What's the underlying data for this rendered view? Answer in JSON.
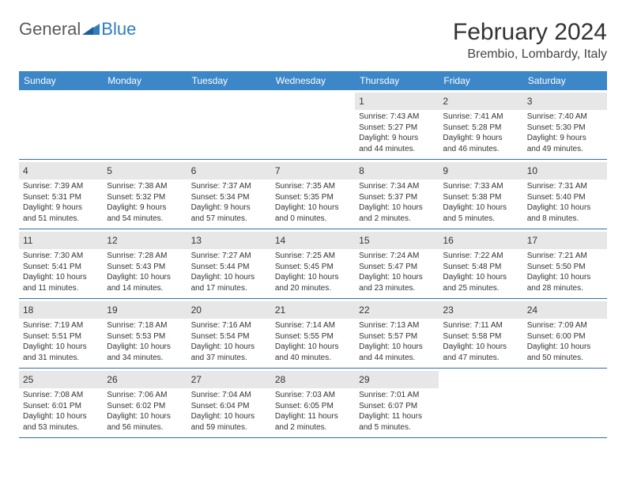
{
  "logo": {
    "main": "General",
    "sub": "Blue"
  },
  "title": "February 2024",
  "location": "Brembio, Lombardy, Italy",
  "colors": {
    "header_bg": "#3b87c8",
    "header_text": "#ffffff",
    "daynum_bg": "#e7e7e7",
    "week_border": "#2f6fa8",
    "logo_main": "#5a5a5a",
    "logo_sub": "#2d7ec0"
  },
  "day_names": [
    "Sunday",
    "Monday",
    "Tuesday",
    "Wednesday",
    "Thursday",
    "Friday",
    "Saturday"
  ],
  "weeks": [
    [
      {
        "empty": true
      },
      {
        "empty": true
      },
      {
        "empty": true
      },
      {
        "empty": true
      },
      {
        "day": "1",
        "sunrise": "Sunrise: 7:43 AM",
        "sunset": "Sunset: 5:27 PM",
        "daylight1": "Daylight: 9 hours",
        "daylight2": "and 44 minutes."
      },
      {
        "day": "2",
        "sunrise": "Sunrise: 7:41 AM",
        "sunset": "Sunset: 5:28 PM",
        "daylight1": "Daylight: 9 hours",
        "daylight2": "and 46 minutes."
      },
      {
        "day": "3",
        "sunrise": "Sunrise: 7:40 AM",
        "sunset": "Sunset: 5:30 PM",
        "daylight1": "Daylight: 9 hours",
        "daylight2": "and 49 minutes."
      }
    ],
    [
      {
        "day": "4",
        "sunrise": "Sunrise: 7:39 AM",
        "sunset": "Sunset: 5:31 PM",
        "daylight1": "Daylight: 9 hours",
        "daylight2": "and 51 minutes."
      },
      {
        "day": "5",
        "sunrise": "Sunrise: 7:38 AM",
        "sunset": "Sunset: 5:32 PM",
        "daylight1": "Daylight: 9 hours",
        "daylight2": "and 54 minutes."
      },
      {
        "day": "6",
        "sunrise": "Sunrise: 7:37 AM",
        "sunset": "Sunset: 5:34 PM",
        "daylight1": "Daylight: 9 hours",
        "daylight2": "and 57 minutes."
      },
      {
        "day": "7",
        "sunrise": "Sunrise: 7:35 AM",
        "sunset": "Sunset: 5:35 PM",
        "daylight1": "Daylight: 10 hours",
        "daylight2": "and 0 minutes."
      },
      {
        "day": "8",
        "sunrise": "Sunrise: 7:34 AM",
        "sunset": "Sunset: 5:37 PM",
        "daylight1": "Daylight: 10 hours",
        "daylight2": "and 2 minutes."
      },
      {
        "day": "9",
        "sunrise": "Sunrise: 7:33 AM",
        "sunset": "Sunset: 5:38 PM",
        "daylight1": "Daylight: 10 hours",
        "daylight2": "and 5 minutes."
      },
      {
        "day": "10",
        "sunrise": "Sunrise: 7:31 AM",
        "sunset": "Sunset: 5:40 PM",
        "daylight1": "Daylight: 10 hours",
        "daylight2": "and 8 minutes."
      }
    ],
    [
      {
        "day": "11",
        "sunrise": "Sunrise: 7:30 AM",
        "sunset": "Sunset: 5:41 PM",
        "daylight1": "Daylight: 10 hours",
        "daylight2": "and 11 minutes."
      },
      {
        "day": "12",
        "sunrise": "Sunrise: 7:28 AM",
        "sunset": "Sunset: 5:43 PM",
        "daylight1": "Daylight: 10 hours",
        "daylight2": "and 14 minutes."
      },
      {
        "day": "13",
        "sunrise": "Sunrise: 7:27 AM",
        "sunset": "Sunset: 5:44 PM",
        "daylight1": "Daylight: 10 hours",
        "daylight2": "and 17 minutes."
      },
      {
        "day": "14",
        "sunrise": "Sunrise: 7:25 AM",
        "sunset": "Sunset: 5:45 PM",
        "daylight1": "Daylight: 10 hours",
        "daylight2": "and 20 minutes."
      },
      {
        "day": "15",
        "sunrise": "Sunrise: 7:24 AM",
        "sunset": "Sunset: 5:47 PM",
        "daylight1": "Daylight: 10 hours",
        "daylight2": "and 23 minutes."
      },
      {
        "day": "16",
        "sunrise": "Sunrise: 7:22 AM",
        "sunset": "Sunset: 5:48 PM",
        "daylight1": "Daylight: 10 hours",
        "daylight2": "and 25 minutes."
      },
      {
        "day": "17",
        "sunrise": "Sunrise: 7:21 AM",
        "sunset": "Sunset: 5:50 PM",
        "daylight1": "Daylight: 10 hours",
        "daylight2": "and 28 minutes."
      }
    ],
    [
      {
        "day": "18",
        "sunrise": "Sunrise: 7:19 AM",
        "sunset": "Sunset: 5:51 PM",
        "daylight1": "Daylight: 10 hours",
        "daylight2": "and 31 minutes."
      },
      {
        "day": "19",
        "sunrise": "Sunrise: 7:18 AM",
        "sunset": "Sunset: 5:53 PM",
        "daylight1": "Daylight: 10 hours",
        "daylight2": "and 34 minutes."
      },
      {
        "day": "20",
        "sunrise": "Sunrise: 7:16 AM",
        "sunset": "Sunset: 5:54 PM",
        "daylight1": "Daylight: 10 hours",
        "daylight2": "and 37 minutes."
      },
      {
        "day": "21",
        "sunrise": "Sunrise: 7:14 AM",
        "sunset": "Sunset: 5:55 PM",
        "daylight1": "Daylight: 10 hours",
        "daylight2": "and 40 minutes."
      },
      {
        "day": "22",
        "sunrise": "Sunrise: 7:13 AM",
        "sunset": "Sunset: 5:57 PM",
        "daylight1": "Daylight: 10 hours",
        "daylight2": "and 44 minutes."
      },
      {
        "day": "23",
        "sunrise": "Sunrise: 7:11 AM",
        "sunset": "Sunset: 5:58 PM",
        "daylight1": "Daylight: 10 hours",
        "daylight2": "and 47 minutes."
      },
      {
        "day": "24",
        "sunrise": "Sunrise: 7:09 AM",
        "sunset": "Sunset: 6:00 PM",
        "daylight1": "Daylight: 10 hours",
        "daylight2": "and 50 minutes."
      }
    ],
    [
      {
        "day": "25",
        "sunrise": "Sunrise: 7:08 AM",
        "sunset": "Sunset: 6:01 PM",
        "daylight1": "Daylight: 10 hours",
        "daylight2": "and 53 minutes."
      },
      {
        "day": "26",
        "sunrise": "Sunrise: 7:06 AM",
        "sunset": "Sunset: 6:02 PM",
        "daylight1": "Daylight: 10 hours",
        "daylight2": "and 56 minutes."
      },
      {
        "day": "27",
        "sunrise": "Sunrise: 7:04 AM",
        "sunset": "Sunset: 6:04 PM",
        "daylight1": "Daylight: 10 hours",
        "daylight2": "and 59 minutes."
      },
      {
        "day": "28",
        "sunrise": "Sunrise: 7:03 AM",
        "sunset": "Sunset: 6:05 PM",
        "daylight1": "Daylight: 11 hours",
        "daylight2": "and 2 minutes."
      },
      {
        "day": "29",
        "sunrise": "Sunrise: 7:01 AM",
        "sunset": "Sunset: 6:07 PM",
        "daylight1": "Daylight: 11 hours",
        "daylight2": "and 5 minutes."
      },
      {
        "empty": true
      },
      {
        "empty": true
      }
    ]
  ]
}
